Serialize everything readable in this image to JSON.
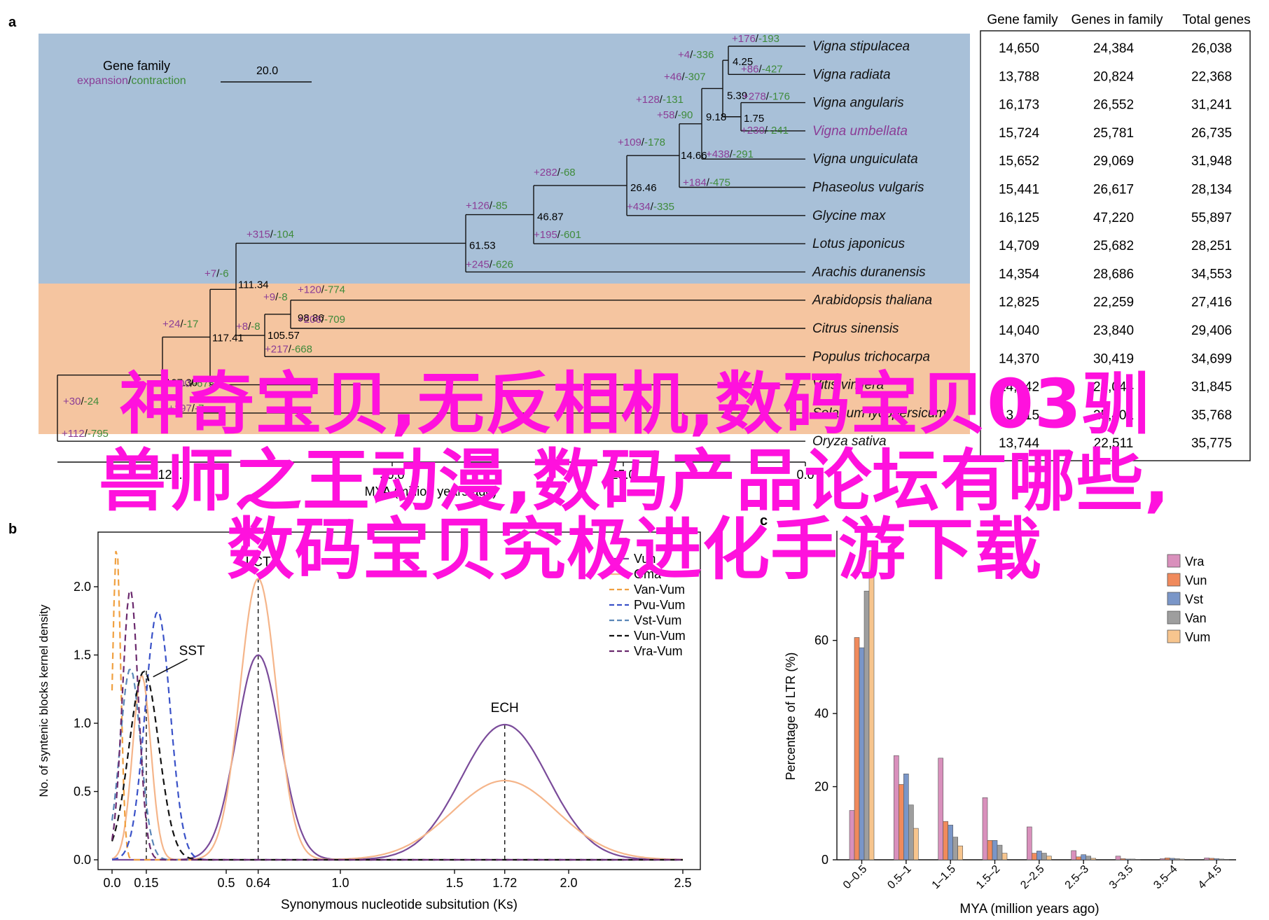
{
  "panel_labels": {
    "a": "a",
    "b": "b",
    "c": "c"
  },
  "colors": {
    "legume_bg": "#a8c0d8",
    "rosid_bg": "#f5c5a0",
    "expansion": "#8b3d96",
    "contraction": "#3f8b3b",
    "highlight_species": "#8b3d96",
    "overlay_text": "#ff11dd"
  },
  "tree_legend": {
    "title": "Gene family",
    "expansion": "expansion",
    "separator": "/",
    "contraction": "contraction",
    "scale_label": "20.0"
  },
  "table": {
    "headers": [
      "Gene family",
      "Genes in family",
      "Total genes"
    ],
    "rows": [
      [
        "14,650",
        "24,384",
        "26,038"
      ],
      [
        "13,788",
        "20,824",
        "22,368"
      ],
      [
        "16,173",
        "26,552",
        "31,241"
      ],
      [
        "15,724",
        "25,781",
        "26,735"
      ],
      [
        "15,652",
        "29,069",
        "31,948"
      ],
      [
        "15,441",
        "26,617",
        "28,134"
      ],
      [
        "16,125",
        "47,220",
        "55,897"
      ],
      [
        "14,709",
        "25,682",
        "28,251"
      ],
      [
        "14,354",
        "28,686",
        "34,553"
      ],
      [
        "12,825",
        "22,259",
        "27,416"
      ],
      [
        "14,040",
        "23,840",
        "29,406"
      ],
      [
        "14,370",
        "30,419",
        "34,699"
      ],
      [
        "14,542",
        "24,044",
        "31,845"
      ],
      [
        "13,615",
        "25,401",
        "35,768"
      ],
      [
        "13,744",
        "22,511",
        "35,775"
      ]
    ]
  },
  "species": [
    "Vigna stipulacea",
    "Vigna radiata",
    "Vigna angularis",
    "Vigna umbellata",
    "Vigna unguiculata",
    "Phaseolus vulgaris",
    "Glycine max",
    "Lotus japonicus",
    "Arachis duranensis",
    "Arabidopsis thaliana",
    "Citrus sinensis",
    "Populus trichocarpa",
    "Vitis vinifera",
    "Solanum lycopersicum",
    "Oryza sativa"
  ],
  "node_ages": [
    "4.25",
    "5.39",
    "1.75",
    "9.18",
    "14.66",
    "26.46",
    "46.87",
    "61.53",
    "111.34",
    "98.86",
    "105.57",
    "117.41",
    "127.36"
  ],
  "branch_labels": [
    {
      "e": "+176",
      "c": "193"
    },
    {
      "e": "+4",
      "c": "336"
    },
    {
      "e": "+86",
      "c": "427"
    },
    {
      "e": "+46",
      "c": "307"
    },
    {
      "e": "+278",
      "c": "176"
    },
    {
      "e": "+128",
      "c": "131"
    },
    {
      "e": "+58",
      "c": "90"
    },
    {
      "e": "+230",
      "c": "241"
    },
    {
      "e": "+109",
      "c": "178"
    },
    {
      "e": "+438",
      "c": "291"
    },
    {
      "e": "+184",
      "c": "475"
    },
    {
      "e": "+282",
      "c": "68"
    },
    {
      "e": "+434",
      "c": "335"
    },
    {
      "e": "+126",
      "c": "85"
    },
    {
      "e": "+195",
      "c": "601"
    },
    {
      "e": "+315",
      "c": "104"
    },
    {
      "e": "+245",
      "c": "626"
    },
    {
      "e": "+7",
      "c": "6"
    },
    {
      "e": "+120",
      "c": "774"
    },
    {
      "e": "+9",
      "c": "8"
    },
    {
      "e": "+206",
      "c": "709"
    },
    {
      "e": "+24",
      "c": "17"
    },
    {
      "e": "+8",
      "c": "8"
    },
    {
      "e": "+217",
      "c": "668"
    },
    {
      "e": "+30",
      "c": "24"
    },
    {
      "e": "+200",
      "c": "675"
    },
    {
      "e": "+197",
      "c": "7"
    },
    {
      "e": "+112",
      "c": "795"
    }
  ],
  "tree_axis": {
    "ticks": [
      "125.0",
      "50.0",
      "25.0",
      "0.0"
    ],
    "label": "MYA (million years ago)"
  },
  "chart_data": [
    {
      "type": "line",
      "title": "",
      "xlabel": "Synonymous nucleotide subsitution (Ks)",
      "ylabel": "No. of syntenic blocks kernel density",
      "xlim": [
        0,
        2.5
      ],
      "ylim": [
        0,
        2.4
      ],
      "xticks": [
        "0.0",
        "0.15",
        "0.5",
        "0.64",
        "1.0",
        "1.5",
        "1.72",
        "2.0",
        "2.5"
      ],
      "yticks": [
        "0.0",
        "0.5",
        "1.0",
        "1.5",
        "2.0"
      ],
      "legend_position": "top-right",
      "series": [
        {
          "name": "Vun",
          "color": "#7a4b9a",
          "dash": false,
          "peaks": [
            [
              0.64,
              1.5,
              0.095
            ],
            [
              1.72,
              0.99,
              0.19
            ]
          ]
        },
        {
          "name": "Gma",
          "color": "#f5b58a",
          "dash": false,
          "peaks": [
            [
              0.64,
              2.06,
              0.08
            ],
            [
              1.72,
              0.58,
              0.23
            ],
            [
              0.13,
              1.35,
              0.04
            ]
          ]
        },
        {
          "name": "Van-Vum",
          "color": "#f0a040",
          "dash": true,
          "peaks": [
            [
              0.02,
              2.3,
              0.018
            ]
          ]
        },
        {
          "name": "Pvu-Vum",
          "color": "#3a52c8",
          "dash": true,
          "peaks": [
            [
              0.2,
              1.82,
              0.055
            ]
          ]
        },
        {
          "name": "Vst-Vum",
          "color": "#5b87b8",
          "dash": true,
          "peaks": [
            [
              0.08,
              1.4,
              0.045
            ]
          ]
        },
        {
          "name": "Vun-Vum",
          "color": "#111111",
          "dash": true,
          "peaks": [
            [
              0.14,
              1.38,
              0.065
            ]
          ]
        },
        {
          "name": "Vra-Vum",
          "color": "#6b2a6e",
          "dash": true,
          "peaks": [
            [
              0.08,
              1.98,
              0.035
            ]
          ]
        }
      ],
      "annotations": [
        {
          "text": "SST",
          "x": 0.15,
          "y": 1.4
        },
        {
          "text": "LCT",
          "x": 0.64,
          "y": 2.06
        },
        {
          "text": "ECH",
          "x": 1.72,
          "y": 0.99
        }
      ],
      "reference_lines": [
        0.15,
        0.64,
        1.72
      ]
    },
    {
      "type": "bar",
      "title": "",
      "xlabel": "MYA (million years ago)",
      "ylabel": "Percentage of LTR (%)",
      "ylim": [
        0,
        90
      ],
      "yticks": [
        "0",
        "20",
        "40",
        "60"
      ],
      "legend_position": "top-right",
      "categories": [
        "0–0.5",
        "0.5–1",
        "1–1.5",
        "1.5–2",
        "2–2.5",
        "2.5–3",
        "3–3.5",
        "3.5–4",
        "4–4.5"
      ],
      "series": [
        {
          "name": "Vra",
          "color": "#d990bc",
          "values": [
            13.5,
            28.5,
            27.8,
            17.0,
            9.0,
            2.5,
            1.0,
            0.3,
            0.5
          ]
        },
        {
          "name": "Vun",
          "color": "#f08a5c",
          "values": [
            60.8,
            20.6,
            10.5,
            5.3,
            1.8,
            0.8,
            0.3,
            0.5,
            0.4
          ]
        },
        {
          "name": "Vst",
          "color": "#7a96c8",
          "values": [
            58.0,
            23.5,
            9.5,
            5.3,
            2.4,
            1.4,
            0.2,
            0.4,
            0.3
          ]
        },
        {
          "name": "Van",
          "color": "#9e9e9e",
          "values": [
            73.5,
            15.0,
            6.2,
            4.0,
            1.8,
            1.0,
            0.2,
            0.3,
            0.2
          ]
        },
        {
          "name": "Vum",
          "color": "#f7c58e",
          "values": [
            84.5,
            8.6,
            3.8,
            1.8,
            1.0,
            0.4,
            0.1,
            0.2,
            0.1
          ]
        }
      ]
    }
  ],
  "overlay_lines": [
    "神奇宝贝,无反相机,数码宝贝03驯",
    "兽师之王动漫,数码产品论坛有哪些,",
    "数码宝贝究极进化手游下载"
  ]
}
